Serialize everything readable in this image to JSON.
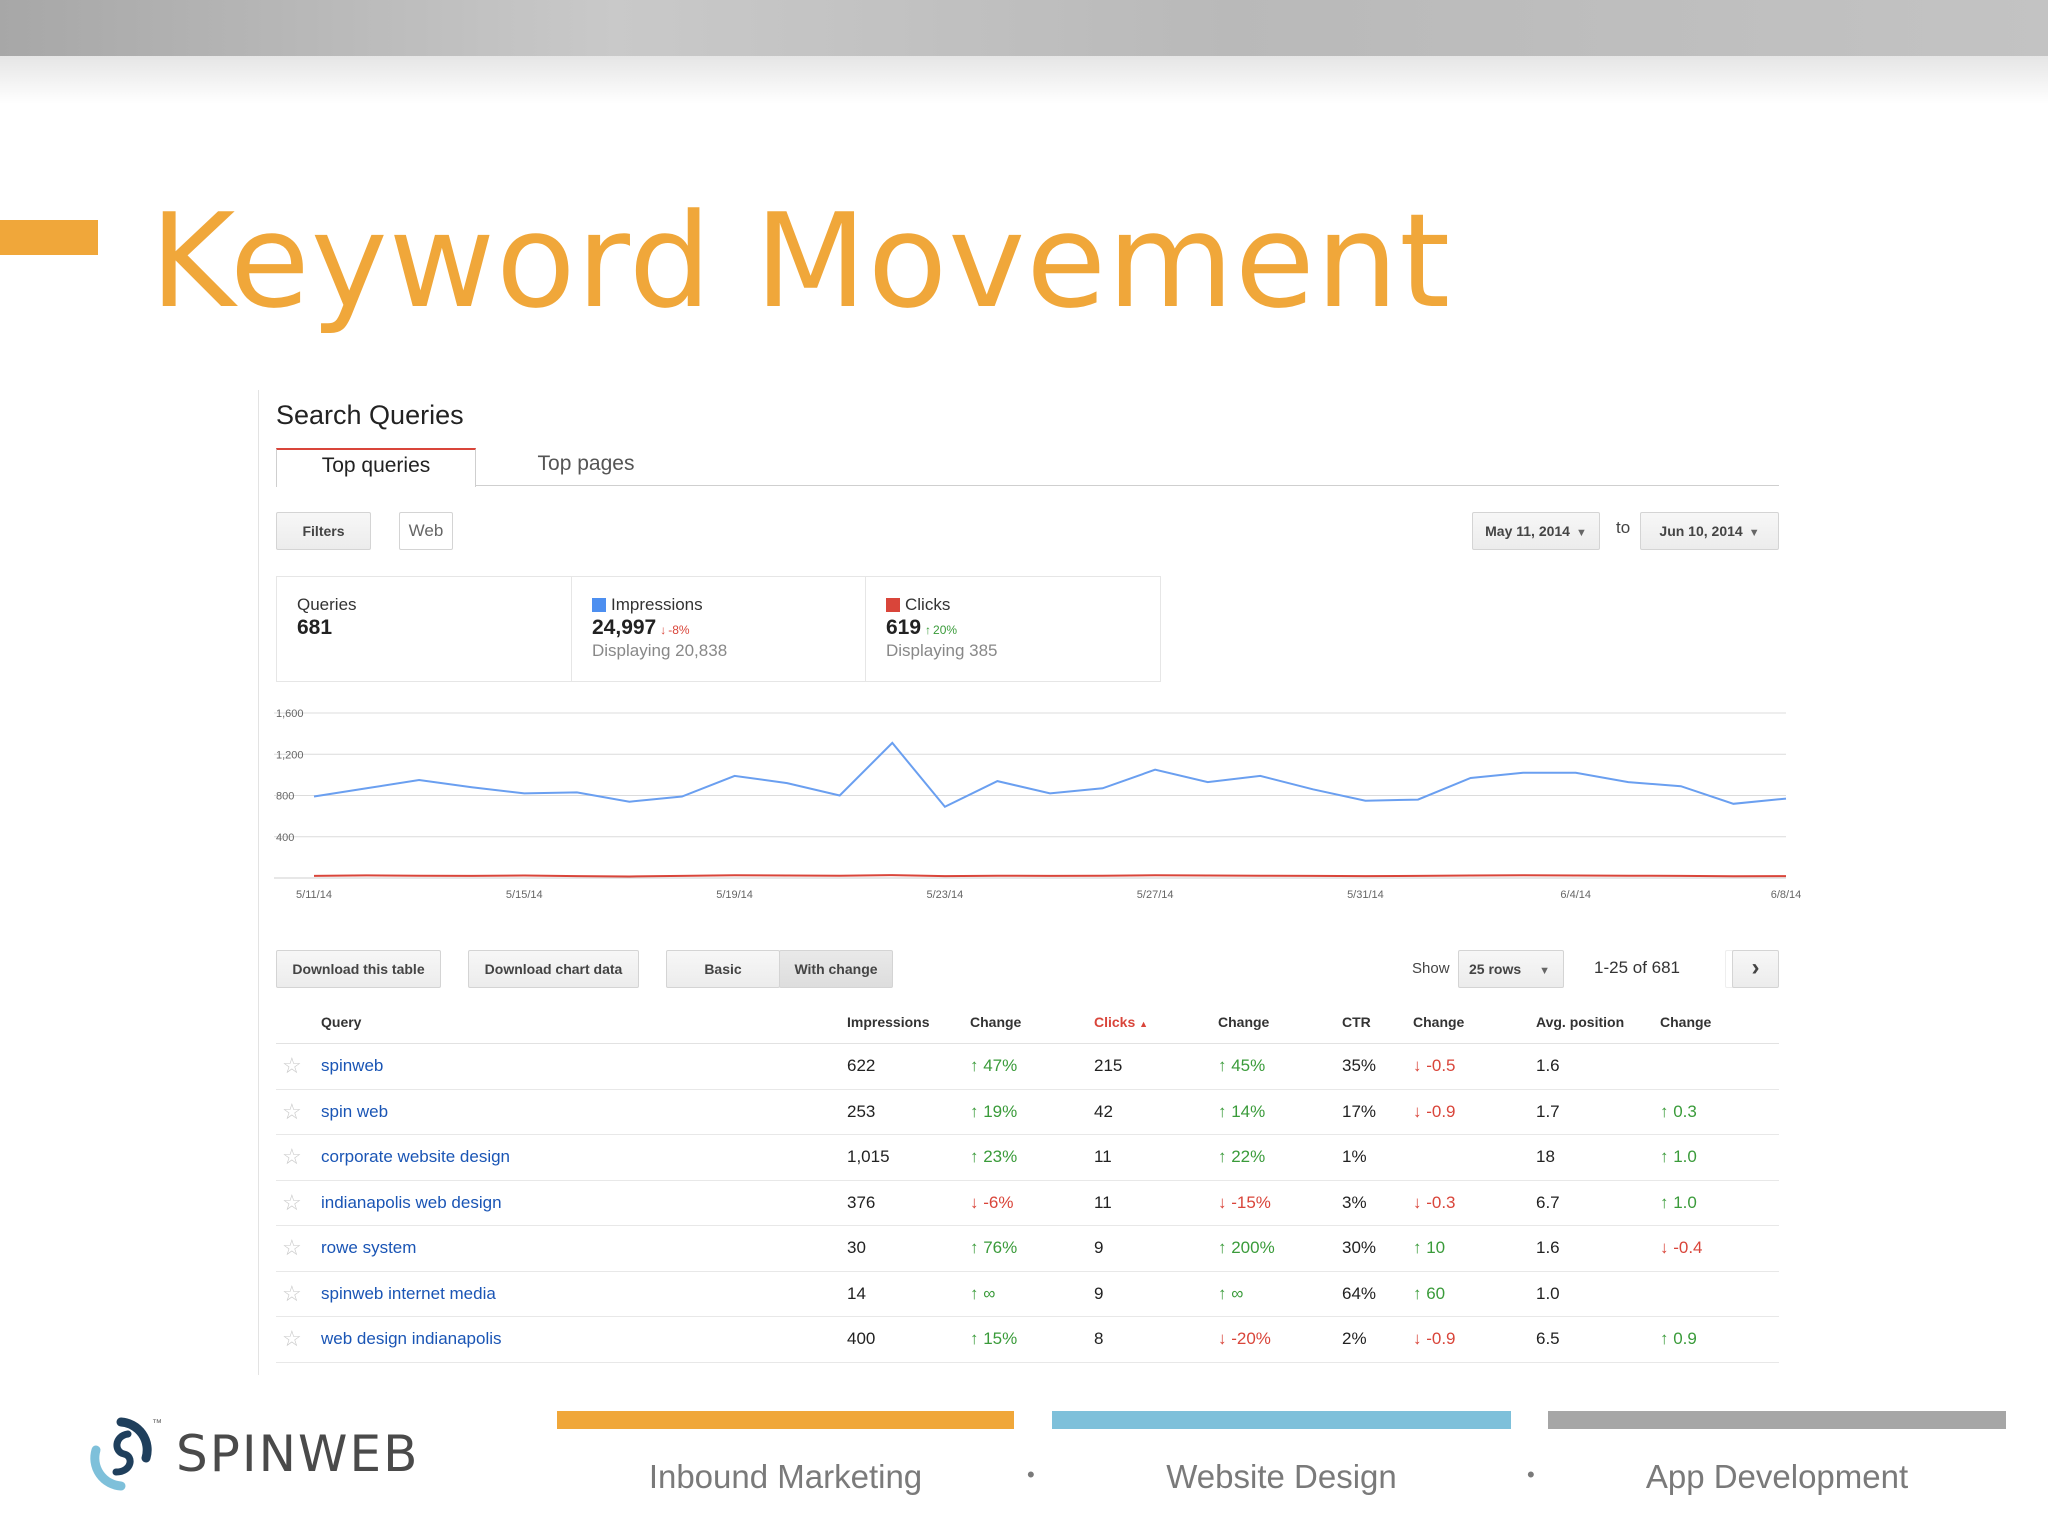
{
  "slide": {
    "title": "Keyword Movement"
  },
  "panel": {
    "title": "Search Queries",
    "tabs": [
      {
        "label": "Top queries",
        "active": true
      },
      {
        "label": "Top pages",
        "active": false
      }
    ],
    "filters_label": "Filters",
    "web_label": "Web",
    "date_from": "May 11, 2014",
    "to_label": "to",
    "date_to": "Jun 10, 2014"
  },
  "summary": {
    "queries": {
      "label": "Queries",
      "value": "681"
    },
    "impressions": {
      "label": "Impressions",
      "value": "24,997",
      "delta": "-8%",
      "displaying": "Displaying 20,838",
      "color": "#4d8ff0"
    },
    "clicks": {
      "label": "Clicks",
      "value": "619",
      "delta": "20%",
      "displaying": "Displaying 385",
      "color": "#d9453a"
    }
  },
  "chart_data": {
    "type": "line",
    "y_ticks": [
      "1,600",
      "1,200",
      "800",
      "400"
    ],
    "ylim": [
      0,
      1600
    ],
    "x_tick_labels": [
      "5/11/14",
      "5/15/14",
      "5/19/14",
      "5/23/14",
      "5/27/14",
      "5/31/14",
      "6/4/14",
      "6/8/14"
    ],
    "x": [
      "5/11/14",
      "5/12/14",
      "5/13/14",
      "5/14/14",
      "5/15/14",
      "5/16/14",
      "5/17/14",
      "5/18/14",
      "5/19/14",
      "5/20/14",
      "5/21/14",
      "5/22/14",
      "5/23/14",
      "5/24/14",
      "5/25/14",
      "5/26/14",
      "5/27/14",
      "5/28/14",
      "5/29/14",
      "5/30/14",
      "5/31/14",
      "6/1/14",
      "6/2/14",
      "6/3/14",
      "6/4/14",
      "6/5/14",
      "6/6/14",
      "6/7/14",
      "6/8/14"
    ],
    "series": [
      {
        "name": "Impressions",
        "color": "#6a9ff0",
        "values": [
          790,
          870,
          950,
          880,
          820,
          830,
          740,
          790,
          990,
          920,
          800,
          1310,
          690,
          940,
          820,
          870,
          1050,
          930,
          990,
          860,
          750,
          760,
          970,
          1020,
          1020,
          930,
          890,
          720,
          770
        ]
      },
      {
        "name": "Clicks",
        "color": "#d9453a",
        "values": [
          20,
          25,
          22,
          20,
          24,
          18,
          15,
          20,
          26,
          24,
          22,
          28,
          18,
          22,
          20,
          22,
          26,
          24,
          22,
          20,
          18,
          20,
          24,
          26,
          24,
          22,
          20,
          16,
          18
        ]
      }
    ]
  },
  "controls": {
    "download_table": "Download this table",
    "download_chart": "Download chart data",
    "basic": "Basic",
    "with_change": "With change",
    "show_label": "Show",
    "rows_select": "25 rows",
    "range": "1-25 of 681"
  },
  "table": {
    "headers": {
      "query": "Query",
      "impressions": "Impressions",
      "imp_change": "Change",
      "clicks": "Clicks",
      "clicks_change": "Change",
      "ctr": "CTR",
      "ctr_change": "Change",
      "avg_position": "Avg. position",
      "pos_change": "Change"
    },
    "rows": [
      {
        "query": "spinweb",
        "impressions": "622",
        "imp_change": "↑ 47%",
        "imp_dir": "up",
        "clicks": "215",
        "clicks_change": "↑ 45%",
        "clicks_dir": "up",
        "ctr": "35%",
        "ctr_change": "↓ -0.5",
        "ctr_dir": "down",
        "position": "1.6",
        "pos_change": "",
        "pos_dir": ""
      },
      {
        "query": "spin web",
        "impressions": "253",
        "imp_change": "↑ 19%",
        "imp_dir": "up",
        "clicks": "42",
        "clicks_change": "↑ 14%",
        "clicks_dir": "up",
        "ctr": "17%",
        "ctr_change": "↓ -0.9",
        "ctr_dir": "down",
        "position": "1.7",
        "pos_change": "↑ 0.3",
        "pos_dir": "up"
      },
      {
        "query": "corporate website design",
        "impressions": "1,015",
        "imp_change": "↑ 23%",
        "imp_dir": "up",
        "clicks": "11",
        "clicks_change": "↑ 22%",
        "clicks_dir": "up",
        "ctr": "1%",
        "ctr_change": "",
        "ctr_dir": "",
        "position": "18",
        "pos_change": "↑ 1.0",
        "pos_dir": "up"
      },
      {
        "query": "indianapolis web design",
        "impressions": "376",
        "imp_change": "↓ -6%",
        "imp_dir": "down",
        "clicks": "11",
        "clicks_change": "↓ -15%",
        "clicks_dir": "down",
        "ctr": "3%",
        "ctr_change": "↓ -0.3",
        "ctr_dir": "down",
        "position": "6.7",
        "pos_change": "↑ 1.0",
        "pos_dir": "up"
      },
      {
        "query": "rowe system",
        "impressions": "30",
        "imp_change": "↑ 76%",
        "imp_dir": "up",
        "clicks": "9",
        "clicks_change": "↑ 200%",
        "clicks_dir": "up",
        "ctr": "30%",
        "ctr_change": "↑ 10",
        "ctr_dir": "up",
        "position": "1.6",
        "pos_change": "↓ -0.4",
        "pos_dir": "down"
      },
      {
        "query": "spinweb internet media",
        "impressions": "14",
        "imp_change": "↑ ∞",
        "imp_dir": "up",
        "clicks": "9",
        "clicks_change": "↑ ∞",
        "clicks_dir": "up",
        "ctr": "64%",
        "ctr_change": "↑ 60",
        "ctr_dir": "up",
        "position": "1.0",
        "pos_change": "",
        "pos_dir": ""
      },
      {
        "query": "web design indianapolis",
        "impressions": "400",
        "imp_change": "↑ 15%",
        "imp_dir": "up",
        "clicks": "8",
        "clicks_change": "↓ -20%",
        "clicks_dir": "down",
        "ctr": "2%",
        "ctr_change": "↓ -0.9",
        "ctr_dir": "down",
        "position": "6.5",
        "pos_change": "↑ 0.9",
        "pos_dir": "up"
      }
    ]
  },
  "footer": {
    "brand": "SPINWEB",
    "tm": "™",
    "services": [
      {
        "label": "Inbound Marketing",
        "color": "#f0a73a"
      },
      {
        "label": "Website Design",
        "color": "#7ec0da"
      },
      {
        "label": "App Development",
        "color": "#a6a6a6"
      }
    ],
    "separator": "•"
  },
  "colors": {
    "accent": "#f0a73a",
    "link": "#1a55b5",
    "up": "#3a9b3a",
    "down": "#d9453a"
  }
}
